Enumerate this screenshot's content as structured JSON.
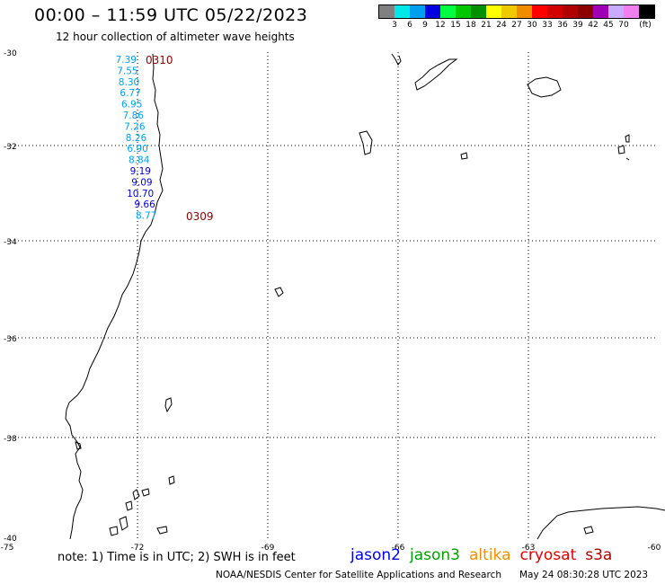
{
  "title": "00:00 – 11:59 UTC 05/22/2023",
  "subtitle": "12 hour collection of altimeter wave heights",
  "legend": {
    "unit": "(ft)",
    "colors": [
      "#808080",
      "#00e8e8",
      "#00a0f0",
      "#0000e0",
      "#00ff40",
      "#00c800",
      "#009000",
      "#ffff00",
      "#f0c800",
      "#f08c00",
      "#ff0000",
      "#d20000",
      "#b00000",
      "#8c0000",
      "#a000b4",
      "#c8aaff",
      "#f080f0",
      "#000000"
    ],
    "labels": [
      "3",
      "6",
      "9",
      "12",
      "15",
      "18",
      "21",
      "24",
      "27",
      "30",
      "33",
      "36",
      "39",
      "42",
      "45",
      "70"
    ]
  },
  "axes": {
    "lat_labels": [
      "-30",
      "-32",
      "-34",
      "-36",
      "-38",
      "-40"
    ],
    "lon_labels": [
      "-75",
      "-72",
      "-69",
      "-66",
      "-63",
      "-60"
    ]
  },
  "track": {
    "points": [
      {
        "label": "7.39",
        "color": "#00a0f0"
      },
      {
        "label": "7.55",
        "color": "#00a0f0"
      },
      {
        "label": "8.30",
        "color": "#00a0f0"
      },
      {
        "label": "6.77",
        "color": "#00a0f0"
      },
      {
        "label": "6.95",
        "color": "#00a0f0"
      },
      {
        "label": "7.86",
        "color": "#00a0f0"
      },
      {
        "label": "7.26",
        "color": "#00a0f0"
      },
      {
        "label": "8.26",
        "color": "#00a0f0"
      },
      {
        "label": "6.90",
        "color": "#00a0f0"
      },
      {
        "label": "8.84",
        "color": "#00a0f0"
      },
      {
        "label": "9.19",
        "color": "#0000e0"
      },
      {
        "label": "9.09",
        "color": "#0000e0"
      },
      {
        "label": "10.70",
        "color": "#0000e0"
      },
      {
        "label": "9.66",
        "color": "#0000e0"
      },
      {
        "label": "8.77",
        "color": "#00a0f0"
      }
    ],
    "time_start": "0310",
    "time_end": "0309",
    "time_color": "#8c0000"
  },
  "note": "note:  1) Time is in UTC;  2) SWH is in feet",
  "satellites": [
    {
      "name": "jason2",
      "color": "#0000e0"
    },
    {
      "name": "jason3",
      "color": "#00a000"
    },
    {
      "name": "altika",
      "color": "#f09000"
    },
    {
      "name": "cryosat",
      "color": "#e00000"
    },
    {
      "name": "s3a",
      "color": "#b00000"
    }
  ],
  "credit": "NOAA/NESDIS Center for Satellite Applications and Research",
  "timestamp": "May 24 08:30:28 UTC 2023"
}
